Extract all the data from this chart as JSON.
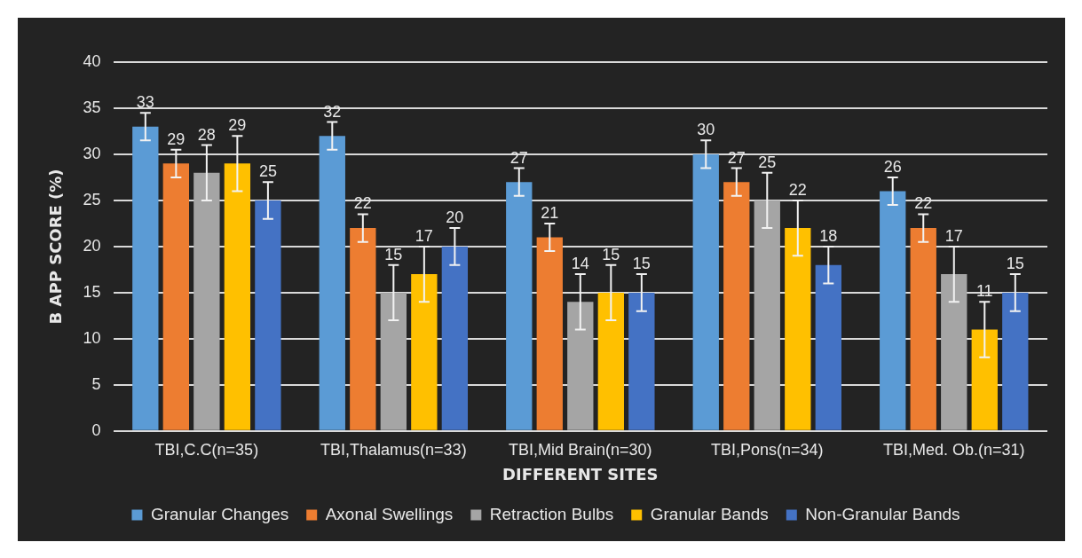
{
  "chart_data": {
    "type": "bar",
    "xlabel": "DIFFERENT SITES",
    "ylabel": "B APP SCORE (%)",
    "categories": [
      "TBI,C.C(n=35)",
      "TBI,Thalamus(n=33)",
      "TBI,Mid Brain(n=30)",
      "TBI,Pons(n=34)",
      "TBI,Med. Ob.(n=31)"
    ],
    "series": [
      {
        "name": "Granular Changes",
        "color": "#5b9bd5",
        "values": [
          33,
          32,
          27,
          30,
          26
        ],
        "errors": [
          1.5,
          1.5,
          1.5,
          1.5,
          1.5
        ]
      },
      {
        "name": "Axonal Swellings",
        "color": "#ed7d31",
        "values": [
          29,
          22,
          21,
          27,
          22
        ],
        "errors": [
          1.5,
          1.5,
          1.5,
          1.5,
          1.5
        ]
      },
      {
        "name": "Retraction Bulbs",
        "color": "#a5a5a5",
        "values": [
          28,
          15,
          14,
          25,
          17
        ],
        "errors": [
          3,
          3,
          3,
          3,
          3
        ]
      },
      {
        "name": "Granular Bands",
        "color": "#ffc000",
        "values": [
          29,
          17,
          15,
          22,
          11
        ],
        "errors": [
          3,
          3,
          3,
          3,
          3
        ]
      },
      {
        "name": "Non-Granular Bands",
        "color": "#4472c4",
        "values": [
          25,
          20,
          15,
          18,
          15
        ],
        "errors": [
          2,
          2,
          2,
          2,
          2
        ]
      }
    ],
    "ylim": [
      0,
      40
    ],
    "yticks": [
      0,
      5,
      10,
      15,
      20,
      25,
      30,
      35,
      40
    ],
    "grid": "y",
    "legend": "bottom",
    "data_labels": true
  }
}
